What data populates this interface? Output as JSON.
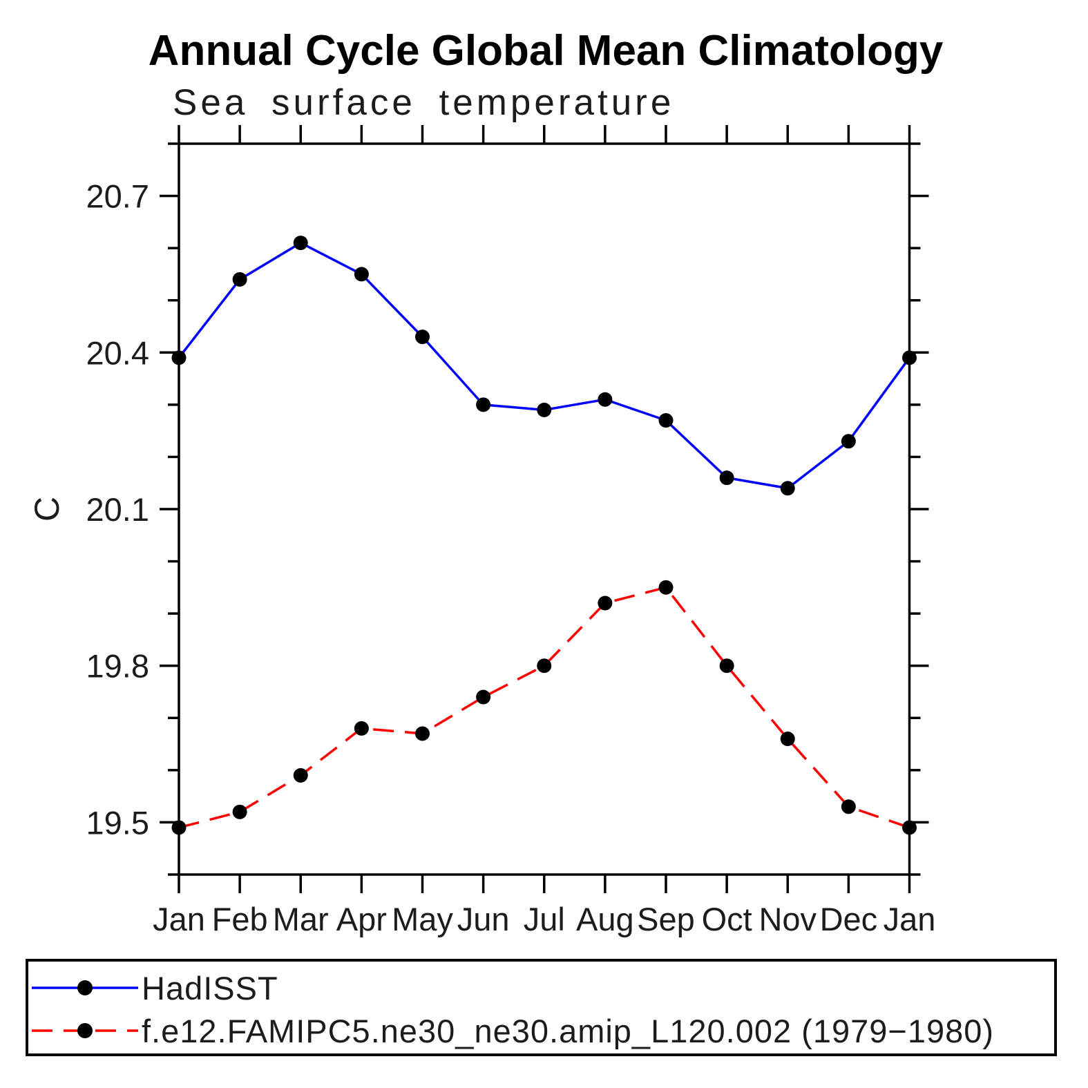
{
  "chart_data": {
    "type": "line",
    "title": "Annual Cycle Global Mean Climatology",
    "subtitle": "Sea surface temperature",
    "ylabel": "C",
    "xlabel": "",
    "x_categories": [
      "Jan",
      "Feb",
      "Mar",
      "Apr",
      "May",
      "Jun",
      "Jul",
      "Aug",
      "Sep",
      "Oct",
      "Nov",
      "Dec",
      "Jan"
    ],
    "ylim": [
      19.4,
      20.8
    ],
    "yticks_major": [
      19.5,
      19.8,
      20.1,
      20.4,
      20.7
    ],
    "ytick_minor_step": 0.1,
    "grid": false,
    "legend_position": "bottom-box",
    "series": [
      {
        "name": "HadISST",
        "color": "#0000ff",
        "line_style": "solid",
        "marker": "filled-circle",
        "marker_color": "#000000",
        "values": [
          20.39,
          20.54,
          20.61,
          20.55,
          20.43,
          20.3,
          20.29,
          20.31,
          20.27,
          20.16,
          20.14,
          20.23,
          20.39
        ]
      },
      {
        "name": "f.e12.FAMIPC5.ne30_ne30.amip_L120.002 (1979−1980)",
        "color": "#ff0000",
        "line_style": "dashed",
        "marker": "filled-circle",
        "marker_color": "#000000",
        "values": [
          19.49,
          19.52,
          19.59,
          19.68,
          19.67,
          19.74,
          19.8,
          19.92,
          19.95,
          19.8,
          19.66,
          19.53,
          19.49
        ]
      }
    ]
  }
}
